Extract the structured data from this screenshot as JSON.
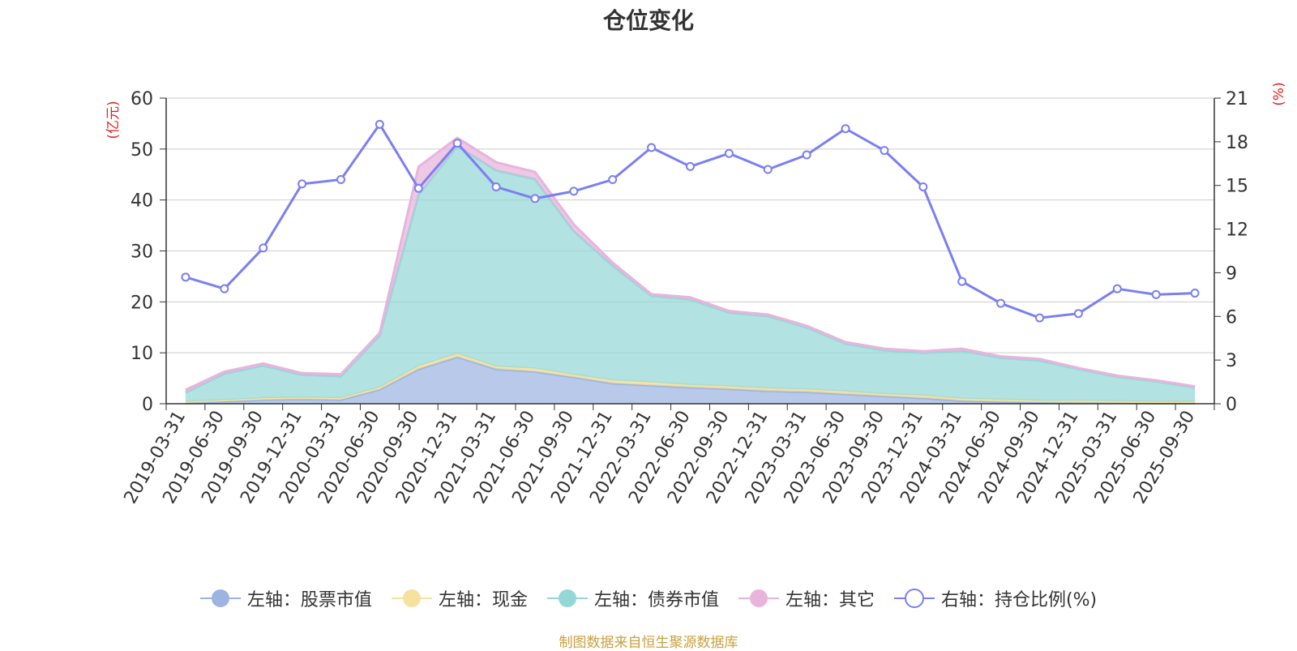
{
  "chart_data": {
    "type": "area",
    "title": "仓位变化",
    "ylabel_left": "(亿元)",
    "ylabel_right": "(%)",
    "ylim_left": [
      0,
      60
    ],
    "ylim_right": [
      0,
      21
    ],
    "yticks_left": [
      "0",
      "10",
      "20",
      "30",
      "40",
      "50",
      "60"
    ],
    "yticks_right": [
      "0",
      "3",
      "6",
      "9",
      "12",
      "15",
      "18",
      "21"
    ],
    "categories": [
      "2019-03-31",
      "2019-06-30",
      "2019-09-30",
      "2019-12-31",
      "2020-03-31",
      "2020-06-30",
      "2020-09-30",
      "2020-12-31",
      "2021-03-31",
      "2021-06-30",
      "2021-09-30",
      "2021-12-31",
      "2022-03-31",
      "2022-06-30",
      "2022-09-30",
      "2022-12-31",
      "2023-03-31",
      "2023-06-30",
      "2023-09-30",
      "2023-12-31",
      "2024-03-31",
      "2024-06-30",
      "2024-09-30",
      "2024-12-31",
      "2025-03-31",
      "2025-06-30",
      "2025-09-30"
    ],
    "stacked": true,
    "grid": true,
    "legend_position": "bottom",
    "series": [
      {
        "name": "左轴：股票市值",
        "axis": "left",
        "kind": "area",
        "color": "#9db4e0",
        "values": [
          0.3,
          0.5,
          0.8,
          0.9,
          0.8,
          2.8,
          6.8,
          9.2,
          6.8,
          6.3,
          5.2,
          4.0,
          3.6,
          3.2,
          2.9,
          2.5,
          2.3,
          1.9,
          1.5,
          1.1,
          0.6,
          0.4,
          0.3,
          0.2,
          0.2,
          0.1,
          0.1
        ]
      },
      {
        "name": "左轴：现金",
        "axis": "left",
        "kind": "area",
        "color": "#f5e2a0",
        "values": [
          0.1,
          0.2,
          0.3,
          0.3,
          0.3,
          0.4,
          0.6,
          0.6,
          0.5,
          0.6,
          0.5,
          0.6,
          0.6,
          0.5,
          0.5,
          0.5,
          0.5,
          0.5,
          0.4,
          0.5,
          0.4,
          0.4,
          0.3,
          0.4,
          0.3,
          0.3,
          0.3
        ]
      },
      {
        "name": "左轴：债券市值",
        "axis": "left",
        "kind": "area",
        "color": "#94d7d7",
        "values": [
          1.8,
          5.2,
          6.4,
          4.5,
          4.3,
          10.2,
          33.6,
          40.8,
          38.5,
          37.2,
          28.2,
          22.5,
          17.0,
          16.8,
          14.5,
          14.2,
          12.2,
          9.4,
          8.6,
          8.4,
          9.4,
          8.2,
          7.9,
          6.2,
          4.8,
          4.0,
          2.8
        ]
      },
      {
        "name": "左轴：其它",
        "axis": "left",
        "kind": "area",
        "color": "#e8b4dc",
        "values": [
          0.5,
          0.4,
          0.4,
          0.3,
          0.4,
          0.5,
          5.5,
          1.6,
          1.6,
          1.4,
          1.3,
          0.6,
          0.3,
          0.4,
          0.3,
          0.3,
          0.3,
          0.3,
          0.3,
          0.3,
          0.4,
          0.3,
          0.3,
          0.2,
          0.2,
          0.2,
          0.2
        ]
      },
      {
        "name": "右轴：持仓比例(%)",
        "axis": "right",
        "kind": "line",
        "color": "#7b7ff0",
        "values": [
          8.7,
          7.9,
          10.7,
          15.1,
          15.4,
          19.2,
          14.8,
          17.9,
          14.9,
          14.1,
          14.6,
          15.4,
          17.6,
          16.3,
          17.2,
          16.1,
          17.1,
          18.9,
          17.4,
          14.9,
          8.4,
          6.9,
          5.9,
          6.2,
          7.9,
          7.5,
          7.6
        ]
      }
    ],
    "source_note": "制图数据来自恒生聚源数据库"
  }
}
